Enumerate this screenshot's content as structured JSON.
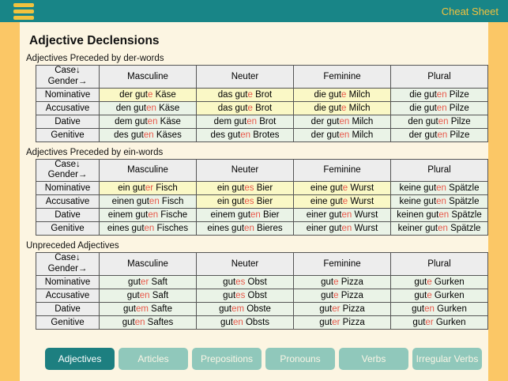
{
  "colors": {
    "topbar_teal": "#188587",
    "frame_yellow": "#FBC766",
    "icon_yellow": "#F2C23E",
    "content_cream": "#FCF5E2",
    "header_gray": "#EDEDED",
    "cell_green": "#EAF3E7",
    "cell_yellow": "#FAF8C6",
    "ending_red": "#E8584A",
    "button_active": "#1D7F80",
    "button_inactive": "#90C8BB",
    "button_text": "#FAF5E6"
  },
  "topbar": {
    "title": "Cheat Sheet",
    "menu_icon": "hamburger"
  },
  "page_title": "Adjective Declensions",
  "tables": [
    {
      "caption": "Adjectives Preceded by der-words",
      "corner_line1": "Case↓",
      "corner_line2": "Gender→",
      "columns": [
        "Masculine",
        "Neuter",
        "Feminine",
        "Plural"
      ],
      "rows": [
        {
          "case": "Nominative",
          "cells": [
            {
              "pre": "der gut",
              "end": "e",
              "post": " Käse",
              "hl": true
            },
            {
              "pre": "das gut",
              "end": "e",
              "post": " Brot",
              "hl": true
            },
            {
              "pre": "die gut",
              "end": "e",
              "post": " Milch",
              "hl": true
            },
            {
              "pre": "die gut",
              "end": "en",
              "post": " Pilze",
              "hl": false
            }
          ]
        },
        {
          "case": "Accusative",
          "cells": [
            {
              "pre": "den gut",
              "end": "en",
              "post": " Käse",
              "hl": false
            },
            {
              "pre": "das gut",
              "end": "e",
              "post": " Brot",
              "hl": true
            },
            {
              "pre": "die gut",
              "end": "e",
              "post": " Milch",
              "hl": true
            },
            {
              "pre": "die gut",
              "end": "en",
              "post": " Pilze",
              "hl": false
            }
          ]
        },
        {
          "case": "Dative",
          "cells": [
            {
              "pre": "dem gut",
              "end": "en",
              "post": " Käse",
              "hl": false
            },
            {
              "pre": "dem gut",
              "end": "en",
              "post": " Brot",
              "hl": false
            },
            {
              "pre": "der gut",
              "end": "en",
              "post": " Milch",
              "hl": false
            },
            {
              "pre": "den gut",
              "end": "en",
              "post": " Pilze",
              "hl": false
            }
          ]
        },
        {
          "case": "Genitive",
          "cells": [
            {
              "pre": "des gut",
              "end": "en",
              "post": " Käses",
              "hl": false
            },
            {
              "pre": "des gut",
              "end": "en",
              "post": " Brotes",
              "hl": false
            },
            {
              "pre": "der gut",
              "end": "en",
              "post": " Milch",
              "hl": false
            },
            {
              "pre": "der gut",
              "end": "en",
              "post": " Pilze",
              "hl": false
            }
          ]
        }
      ]
    },
    {
      "caption": "Adjectives Preceded by ein-words",
      "corner_line1": "Case↓",
      "corner_line2": "Gender→",
      "columns": [
        "Masculine",
        "Neuter",
        "Feminine",
        "Plural"
      ],
      "rows": [
        {
          "case": "Nominative",
          "cells": [
            {
              "pre": "ein gut",
              "end": "er",
              "post": " Fisch",
              "hl": true
            },
            {
              "pre": "ein gut",
              "end": "es",
              "post": " Bier",
              "hl": true
            },
            {
              "pre": "eine gut",
              "end": "e",
              "post": " Wurst",
              "hl": true
            },
            {
              "pre": "keine gut",
              "end": "en",
              "post": " Spätzle",
              "hl": false
            }
          ]
        },
        {
          "case": "Accusative",
          "cells": [
            {
              "pre": "einen gut",
              "end": "en",
              "post": " Fisch",
              "hl": false
            },
            {
              "pre": "ein gut",
              "end": "es",
              "post": " Bier",
              "hl": true
            },
            {
              "pre": "eine gut",
              "end": "e",
              "post": " Wurst",
              "hl": true
            },
            {
              "pre": "keine gut",
              "end": "en",
              "post": " Spätzle",
              "hl": false
            }
          ]
        },
        {
          "case": "Dative",
          "cells": [
            {
              "pre": "einem gut",
              "end": "en",
              "post": " Fische",
              "hl": false
            },
            {
              "pre": "einem gut",
              "end": "en",
              "post": " Bier",
              "hl": false
            },
            {
              "pre": "einer gut",
              "end": "en",
              "post": " Wurst",
              "hl": false
            },
            {
              "pre": "keinen gut",
              "end": "en",
              "post": " Spätzle",
              "hl": false
            }
          ]
        },
        {
          "case": "Genitive",
          "cells": [
            {
              "pre": "eines gut",
              "end": "en",
              "post": " Fisches",
              "hl": false
            },
            {
              "pre": "eines gut",
              "end": "en",
              "post": " Bieres",
              "hl": false
            },
            {
              "pre": "einer gut",
              "end": "en",
              "post": " Wurst",
              "hl": false
            },
            {
              "pre": "keiner gut",
              "end": "en",
              "post": " Spätzle",
              "hl": false
            }
          ]
        }
      ]
    },
    {
      "caption": "Unpreceded Adjectives",
      "corner_line1": "Case↓",
      "corner_line2": "Gender→",
      "columns": [
        "Masculine",
        "Neuter",
        "Feminine",
        "Plural"
      ],
      "rows": [
        {
          "case": "Nominative",
          "cells": [
            {
              "pre": "gut",
              "end": "er",
              "post": " Saft",
              "hl": false
            },
            {
              "pre": "gut",
              "end": "es",
              "post": " Obst",
              "hl": false
            },
            {
              "pre": "gut",
              "end": "e",
              "post": " Pizza",
              "hl": false
            },
            {
              "pre": "gut",
              "end": "e",
              "post": " Gurken",
              "hl": false
            }
          ]
        },
        {
          "case": "Accusative",
          "cells": [
            {
              "pre": "gut",
              "end": "en",
              "post": " Saft",
              "hl": false
            },
            {
              "pre": "gut",
              "end": "es",
              "post": " Obst",
              "hl": false
            },
            {
              "pre": "gut",
              "end": "e",
              "post": " Pizza",
              "hl": false
            },
            {
              "pre": "gut",
              "end": "e",
              "post": " Gurken",
              "hl": false
            }
          ]
        },
        {
          "case": "Dative",
          "cells": [
            {
              "pre": "gut",
              "end": "em",
              "post": " Safte",
              "hl": false
            },
            {
              "pre": "gut",
              "end": "em",
              "post": " Obste",
              "hl": false
            },
            {
              "pre": "gut",
              "end": "er",
              "post": " Pizza",
              "hl": false
            },
            {
              "pre": "gut",
              "end": "en",
              "post": " Gurken",
              "hl": false
            }
          ]
        },
        {
          "case": "Genitive",
          "cells": [
            {
              "pre": "gut",
              "end": "en",
              "post": " Saftes",
              "hl": false
            },
            {
              "pre": "gut",
              "end": "en",
              "post": " Obsts",
              "hl": false
            },
            {
              "pre": "gut",
              "end": "er",
              "post": " Pizza",
              "hl": false
            },
            {
              "pre": "gut",
              "end": "er",
              "post": " Gurken",
              "hl": false
            }
          ]
        }
      ]
    }
  ],
  "nav": {
    "buttons": [
      {
        "label": "Adjectives",
        "active": true
      },
      {
        "label": "Articles",
        "active": false
      },
      {
        "label": "Prepositions",
        "active": false
      },
      {
        "label": "Pronouns",
        "active": false
      },
      {
        "label": "Verbs",
        "active": false
      },
      {
        "label": "Irregular Verbs",
        "active": false
      }
    ]
  }
}
